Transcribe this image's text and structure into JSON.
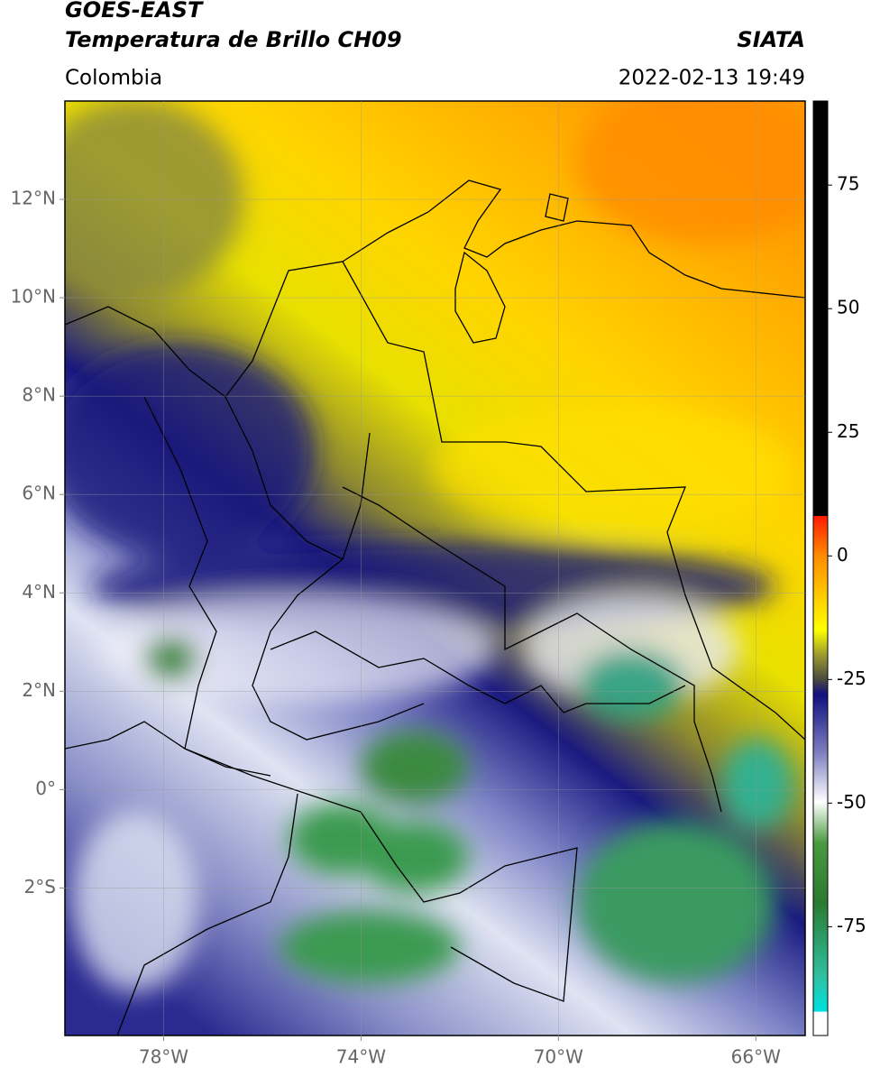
{
  "header": {
    "title_line1": "GOES-EAST",
    "title_line2": "Temperatura de Brillo CH09",
    "source": "SIATA",
    "region": "Colombia",
    "timestamp": "2022-02-13 19:49"
  },
  "map": {
    "xlim": [
      -80,
      -65
    ],
    "ylim": [
      -5,
      14
    ],
    "grid": true,
    "xticks": [
      {
        "value": -78,
        "label": "78°W"
      },
      {
        "value": -74,
        "label": "74°W"
      },
      {
        "value": -70,
        "label": "70°W"
      },
      {
        "value": -66,
        "label": "66°W"
      }
    ],
    "yticks": [
      {
        "value": 12,
        "label": "12°N"
      },
      {
        "value": 10,
        "label": "10°N"
      },
      {
        "value": 8,
        "label": "8°N"
      },
      {
        "value": 6,
        "label": "6°N"
      },
      {
        "value": 4,
        "label": "4°N"
      },
      {
        "value": 2,
        "label": "2°N"
      },
      {
        "value": 0,
        "label": "0°"
      },
      {
        "value": -2,
        "label": "2°S"
      }
    ]
  },
  "colorbar": {
    "lim": [
      -97,
      92
    ],
    "ticks": [
      75,
      50,
      25,
      0,
      -25,
      -50,
      -75
    ]
  }
}
